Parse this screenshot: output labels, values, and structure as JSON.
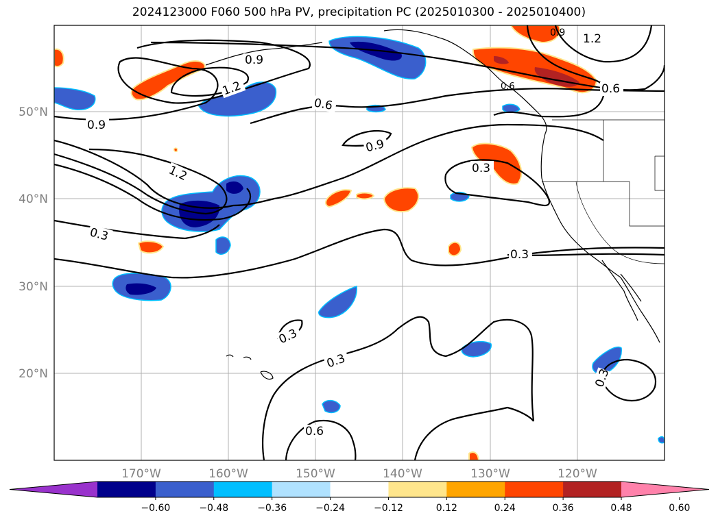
{
  "title": "2024123000 F060 500 hPa PV, precipitation PC (2025010300 - 2025010400)",
  "map": {
    "lat_ticks": [
      "50°N",
      "40°N",
      "30°N",
      "20°N"
    ],
    "lon_ticks": [
      "170°W",
      "160°W",
      "150°W",
      "140°W",
      "130°W",
      "120°W"
    ],
    "grid": true,
    "contour_color": "#000000",
    "contour_labels": [
      {
        "text": "0.9"
      },
      {
        "text": "1.2"
      },
      {
        "text": "0.6"
      },
      {
        "text": "0.9"
      },
      {
        "text": "0.9"
      },
      {
        "text": "1.2"
      },
      {
        "text": "0.3"
      },
      {
        "text": "0.3"
      },
      {
        "text": "0.3"
      },
      {
        "text": "0.3"
      },
      {
        "text": "0.3"
      },
      {
        "text": "0.6"
      },
      {
        "text": "0.3"
      },
      {
        "text": "1.2"
      },
      {
        "text": "0.6"
      },
      {
        "text": "0.6"
      },
      {
        "text": "0.9"
      }
    ]
  },
  "colorbar": {
    "ticks": [
      "−0.60",
      "−0.48",
      "−0.36",
      "−0.24",
      "−0.12",
      "0.12",
      "0.24",
      "0.36",
      "0.48",
      "0.60"
    ],
    "colors": [
      "#9932cc",
      "#00008b",
      "#3a5fcd",
      "#00bfff",
      "#b0e2ff",
      "#ffffff",
      "#ffe68c",
      "#ffa500",
      "#ff4500",
      "#b22222",
      "#ff82ab"
    ],
    "extend": "both"
  }
}
